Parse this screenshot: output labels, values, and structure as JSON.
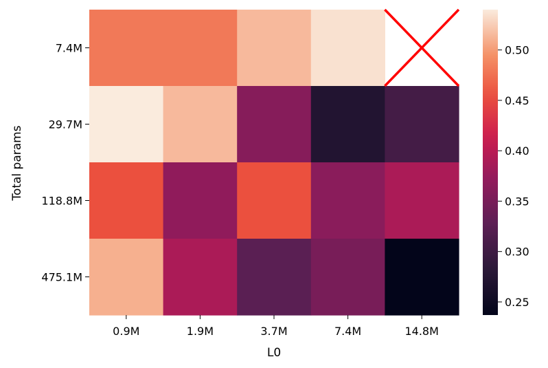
{
  "chart_data": {
    "type": "heatmap",
    "title": "",
    "xlabel": "L0",
    "ylabel": "Total params",
    "x_categories": [
      "0.9M",
      "1.9M",
      "3.7M",
      "7.4M",
      "14.8M"
    ],
    "y_categories": [
      "7.4M",
      "29.7M",
      "118.8M",
      "475.1M"
    ],
    "values": [
      [
        0.48,
        0.48,
        0.515,
        0.535,
        null
      ],
      [
        0.54,
        0.515,
        0.362,
        0.272,
        0.305
      ],
      [
        0.455,
        0.37,
        0.455,
        0.365,
        0.39
      ],
      [
        0.51,
        0.39,
        0.325,
        0.35,
        0.237
      ]
    ],
    "missing_marker": "red-x",
    "colormap": "rocket",
    "vmin": 0.237,
    "vmax": 0.54,
    "colorbar_ticks": [
      "0.25",
      "0.30",
      "0.35",
      "0.40",
      "0.45",
      "0.50"
    ],
    "grid": false,
    "missing_marker_color": "#ff0000"
  }
}
